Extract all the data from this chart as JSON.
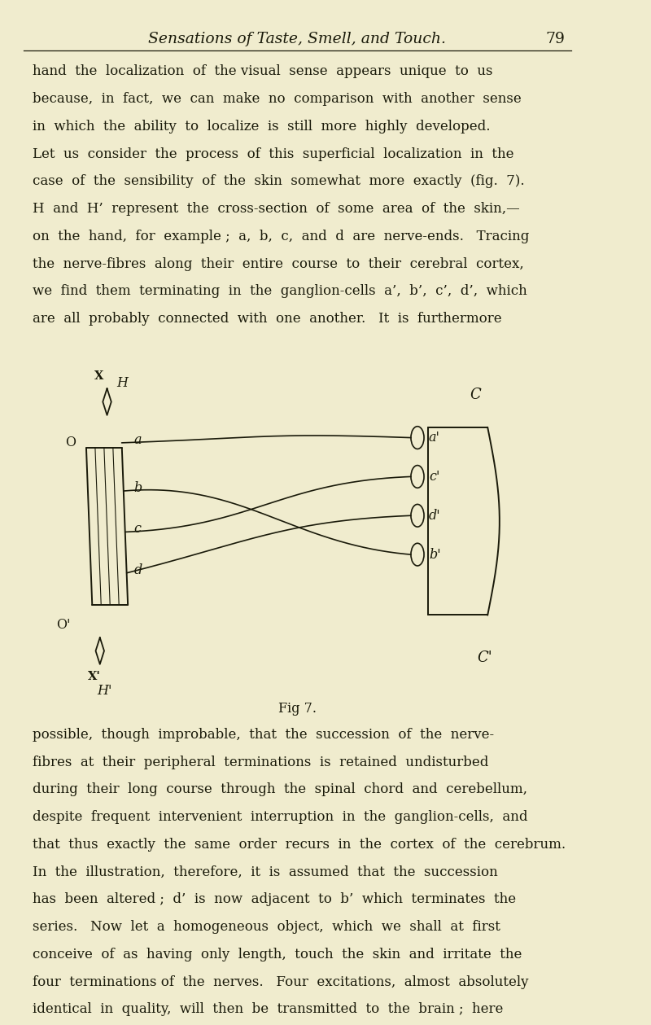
{
  "bg_color": "#f0ecce",
  "page_width": 8.0,
  "page_height": 12.59,
  "header_title": "Sensations of Taste, Smell, and Touch.",
  "header_page": "79",
  "body_fontsize": 12.0,
  "header_fontsize": 13.5,
  "fig_caption": "Fig 7.",
  "paragraph1_lines": [
    "hand  the  localization  of  the visual  sense  appears  unique  to  us",
    "because,  in  fact,  we  can  make  no  comparison  with  another  sense",
    "in  which  the  ability  to  localize  is  still  more  highly  developed.",
    "Let  us  consider  the  process  of  this  superficial  localization  in  the",
    "case  of  the  sensibility  of  the  skin  somewhat  more  exactly  (fig.  7).",
    "H  and  H’  represent  the  cross-section  of  some  area  of  the  skin,—",
    "on  the  hand,  for  example ;  a,  b,  c,  and  d  are  nerve-ends.   Tracing",
    "the  nerve-fibres  along  their  entire  course  to  their  cerebral  cortex,",
    "we  find  them  terminating  in  the  ganglion-cells  a’,  b’,  c’,  d’,  which",
    "are  all  probably  connected  with  one  another.   It  is  furthermore"
  ],
  "paragraph2_lines": [
    "possible,  though  improbable,  that  the  succession  of  the  nerve-",
    "fibres  at  their  peripheral  terminations  is  retained  undisturbed",
    "during  their  long  course  through  the  spinal  chord  and  cerebellum,",
    "despite  frequent  intervenient  interruption  in  the  ganglion-cells,  and",
    "that  thus  exactly  the  same  order  recurs  in  the  cortex  of  the  cerebrum.",
    "In  the  illustration,  therefore,  it  is  assumed  that  the  succession",
    "has  been  altered ;  d’  is  now  adjacent  to  b’  which  terminates  the",
    "series.   Now  let  a  homogeneous  object,  which  we  shall  at  first",
    "conceive  of  as  having  only  length,  touch  the  skin  and  irritate  the",
    "four  terminations of  the  nerves.   Four  excitations,  almost  absolutely",
    "identical  in  quality,  will  then  be  transmitted  to  the  brain ;  here"
  ],
  "text_color": "#1a1a0a",
  "line_color": "#1a1a0a"
}
